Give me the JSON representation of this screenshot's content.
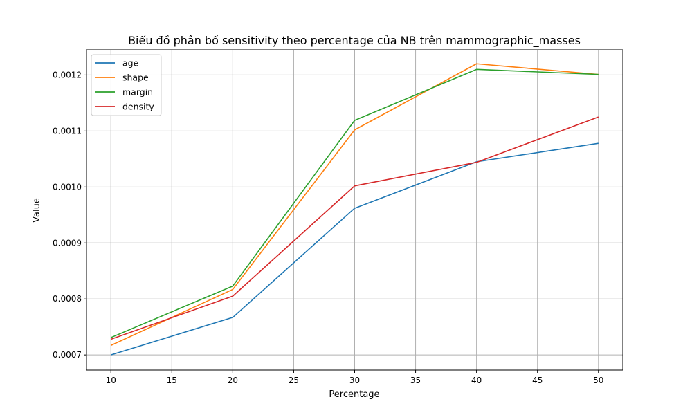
{
  "chart_data": {
    "type": "line",
    "title": "Biểu đồ phân bố sensitivity theo percentage của NB trên mammographic_masses",
    "xlabel": "Percentage",
    "ylabel": "Value",
    "x": [
      10,
      20,
      30,
      40,
      50
    ],
    "xlim": [
      8,
      52
    ],
    "ylim": [
      0.000673,
      0.001245
    ],
    "xticks": [
      "10",
      "15",
      "20",
      "25",
      "30",
      "35",
      "40",
      "45",
      "50"
    ],
    "xtick_values": [
      10,
      15,
      20,
      25,
      30,
      35,
      40,
      45,
      50
    ],
    "yticks": [
      "0.0007",
      "0.0008",
      "0.0009",
      "0.0010",
      "0.0011",
      "0.0012"
    ],
    "ytick_values": [
      0.0007,
      0.0008,
      0.0009,
      0.001,
      0.0011,
      0.0012
    ],
    "grid": true,
    "legend_position": "top-left",
    "series": [
      {
        "name": "age",
        "color": "#1f77b4",
        "values": [
          0.0007,
          0.000767,
          0.000962,
          0.001045,
          0.001078
        ]
      },
      {
        "name": "shape",
        "color": "#ff7f0e",
        "values": [
          0.000717,
          0.000817,
          0.001102,
          0.00122,
          0.001201
        ]
      },
      {
        "name": "margin",
        "color": "#2ca02c",
        "values": [
          0.000731,
          0.000823,
          0.001119,
          0.00121,
          0.001201
        ]
      },
      {
        "name": "density",
        "color": "#d62728",
        "values": [
          0.000728,
          0.000805,
          0.001002,
          0.001044,
          0.001125
        ]
      }
    ]
  }
}
